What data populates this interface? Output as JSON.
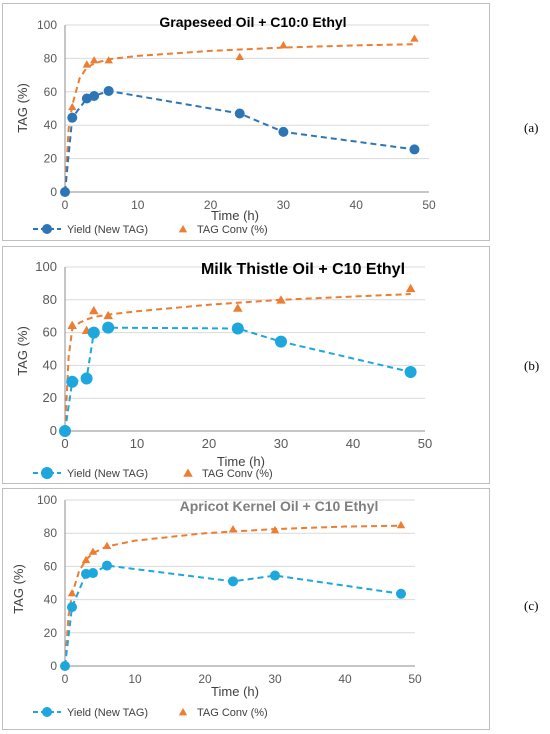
{
  "colors": {
    "yield": "#2e75b6",
    "yield_b": "#1ea7dc",
    "conv": "#ed7d31",
    "grid": "#d9d9d9",
    "axis": "#595959"
  },
  "chart_data": [
    {
      "panel": "(a)",
      "type": "scatter",
      "title": "Grapeseed Oil + C10:0 Ethyl",
      "xlabel": "Time (h)",
      "ylabel": "TAG (%)",
      "xlim": [
        0,
        50
      ],
      "ylim": [
        0,
        100
      ],
      "xticks": [
        0,
        10,
        20,
        30,
        40,
        50
      ],
      "yticks": [
        0,
        20,
        40,
        60,
        80,
        100
      ],
      "grid": true,
      "legend": "bottom",
      "series": [
        {
          "name": "Yield (New TAG)",
          "marker": "circle",
          "line": "dashed-markers",
          "x": [
            0,
            1,
            3,
            4,
            6,
            24,
            30,
            48
          ],
          "y": [
            0,
            44.5,
            56,
            57.5,
            60.5,
            47,
            36,
            25.5
          ]
        },
        {
          "name": "TAG Conv (%)",
          "marker": "triangle",
          "line": "dashed-fit",
          "x": [
            0,
            1,
            3,
            4,
            6,
            24,
            30,
            48
          ],
          "y": [
            0,
            51,
            76.5,
            79,
            79,
            81,
            88,
            92
          ]
        }
      ],
      "fit_conv": [
        [
          0,
          0
        ],
        [
          0.5,
          38
        ],
        [
          1,
          52
        ],
        [
          2,
          68
        ],
        [
          3,
          74.5
        ],
        [
          4,
          77
        ],
        [
          6,
          79.5
        ],
        [
          10,
          81.5
        ],
        [
          20,
          84.5
        ],
        [
          30,
          86.5
        ],
        [
          40,
          87.8
        ],
        [
          48,
          88.5
        ]
      ]
    },
    {
      "panel": "(b)",
      "type": "scatter",
      "title": "Milk Thistle Oil + C10 Ethyl",
      "xlabel": "Time (h)",
      "ylabel": "TAG (%)",
      "xlim": [
        0,
        50
      ],
      "ylim": [
        0,
        100
      ],
      "xticks": [
        0,
        10,
        20,
        30,
        40,
        50
      ],
      "yticks": [
        0,
        20,
        40,
        60,
        80,
        100
      ],
      "grid": true,
      "legend": "bottom",
      "series": [
        {
          "name": "Yield (New TAG)",
          "marker": "circle",
          "line": "dashed-markers",
          "x": [
            0,
            1,
            3,
            4,
            6,
            24,
            30,
            48
          ],
          "y": [
            0,
            30,
            32,
            60,
            63,
            62.5,
            54.5,
            36
          ]
        },
        {
          "name": "TAG Conv (%)",
          "marker": "triangle",
          "line": "dashed-fit",
          "x": [
            0,
            1,
            3,
            4,
            6,
            24,
            30,
            48
          ],
          "y": [
            0,
            64.5,
            61.5,
            73.5,
            70.5,
            75,
            80,
            87
          ]
        }
      ],
      "fit_conv": [
        [
          0,
          0
        ],
        [
          0.5,
          45
        ],
        [
          1,
          62
        ],
        [
          2,
          66
        ],
        [
          3,
          68
        ],
        [
          4,
          69.5
        ],
        [
          6,
          71
        ],
        [
          10,
          73
        ],
        [
          20,
          77
        ],
        [
          30,
          80
        ],
        [
          40,
          82
        ],
        [
          48,
          83.5
        ]
      ]
    },
    {
      "panel": "(c)",
      "type": "scatter",
      "title": "Apricot Kernel Oil + C10 Ethyl",
      "xlabel": "Time (h)",
      "ylabel": "TAG (%)",
      "xlim": [
        0,
        50
      ],
      "ylim": [
        0,
        100
      ],
      "xticks": [
        0,
        10,
        20,
        30,
        40,
        50
      ],
      "yticks": [
        0,
        20,
        40,
        60,
        80,
        100
      ],
      "grid": true,
      "legend": "bottom",
      "series": [
        {
          "name": "Yield (New TAG)",
          "marker": "circle",
          "line": "dashed-markers",
          "x": [
            0,
            1,
            3,
            4,
            6,
            24,
            30,
            48
          ],
          "y": [
            0,
            35.5,
            55.5,
            56,
            60.5,
            51,
            54.5,
            43.5
          ]
        },
        {
          "name": "TAG Conv (%)",
          "marker": "triangle",
          "line": "dashed-fit",
          "x": [
            0,
            1,
            3,
            4,
            6,
            24,
            30,
            48
          ],
          "y": [
            0,
            44,
            64,
            69,
            72.5,
            82.5,
            82,
            85
          ]
        }
      ],
      "fit_conv": [
        [
          0,
          0
        ],
        [
          0.5,
          30
        ],
        [
          1,
          43
        ],
        [
          2,
          57
        ],
        [
          3,
          64
        ],
        [
          4,
          68
        ],
        [
          6,
          72
        ],
        [
          10,
          75.5
        ],
        [
          20,
          80
        ],
        [
          30,
          82.5
        ],
        [
          40,
          84
        ],
        [
          48,
          84.5
        ]
      ]
    }
  ]
}
